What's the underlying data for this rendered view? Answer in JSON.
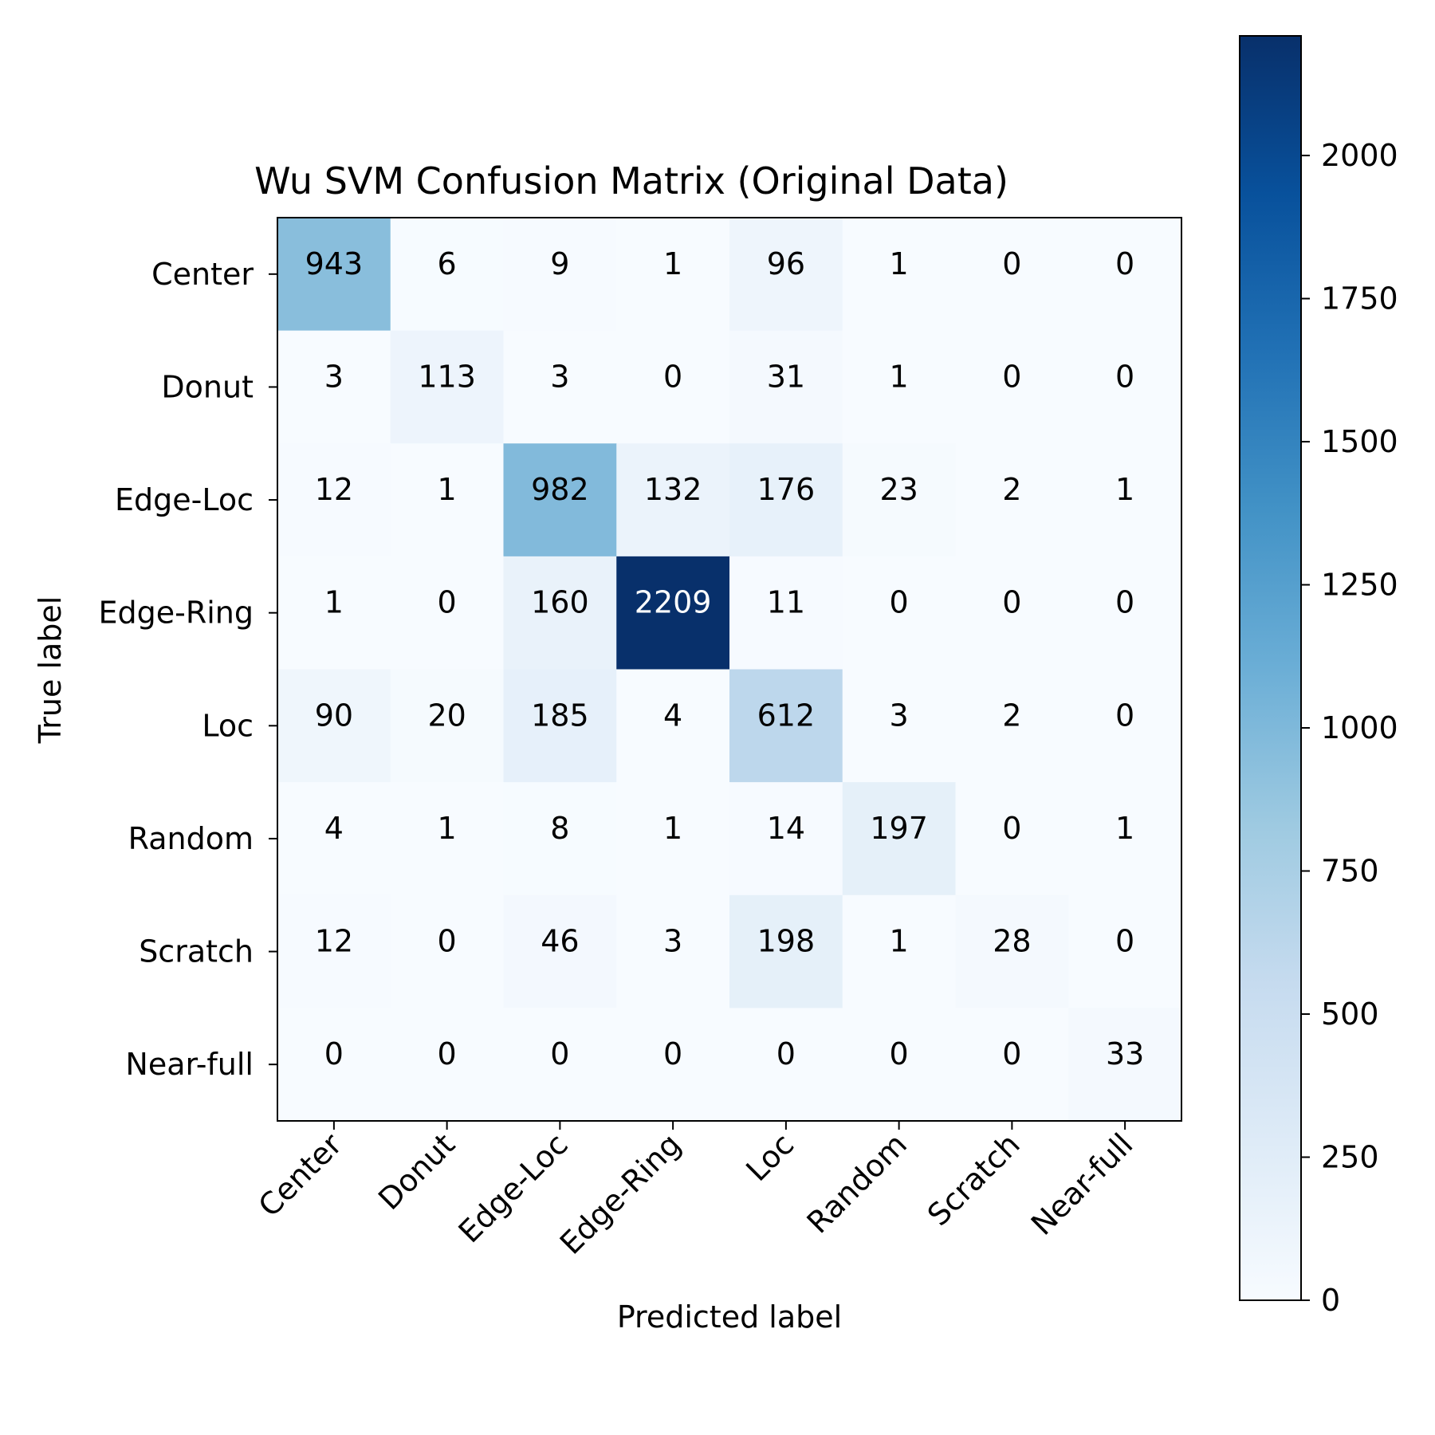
{
  "chart_data": {
    "type": "heatmap",
    "title": "Wu SVM Confusion Matrix (Original Data)",
    "xlabel": "Predicted label",
    "ylabel": "True label",
    "x_categories": [
      "Center",
      "Donut",
      "Edge-Loc",
      "Edge-Ring",
      "Loc",
      "Random",
      "Scratch",
      "Near-full"
    ],
    "y_categories": [
      "Center",
      "Donut",
      "Edge-Loc",
      "Edge-Ring",
      "Loc",
      "Random",
      "Scratch",
      "Near-full"
    ],
    "values": [
      [
        943,
        6,
        9,
        1,
        96,
        1,
        0,
        0
      ],
      [
        3,
        113,
        3,
        0,
        31,
        1,
        0,
        0
      ],
      [
        12,
        1,
        982,
        132,
        176,
        23,
        2,
        1
      ],
      [
        1,
        0,
        160,
        2209,
        11,
        0,
        0,
        0
      ],
      [
        90,
        20,
        185,
        4,
        612,
        3,
        2,
        0
      ],
      [
        4,
        1,
        8,
        1,
        14,
        197,
        0,
        1
      ],
      [
        12,
        0,
        46,
        3,
        198,
        1,
        28,
        0
      ],
      [
        0,
        0,
        0,
        0,
        0,
        0,
        0,
        33
      ]
    ],
    "colormap": "Blues",
    "colorbar": {
      "min": 0,
      "max": 2209,
      "ticks": [
        0,
        250,
        500,
        750,
        1000,
        1250,
        1500,
        1750,
        2000
      ]
    },
    "legend": "colorbar-right",
    "grid": false
  }
}
